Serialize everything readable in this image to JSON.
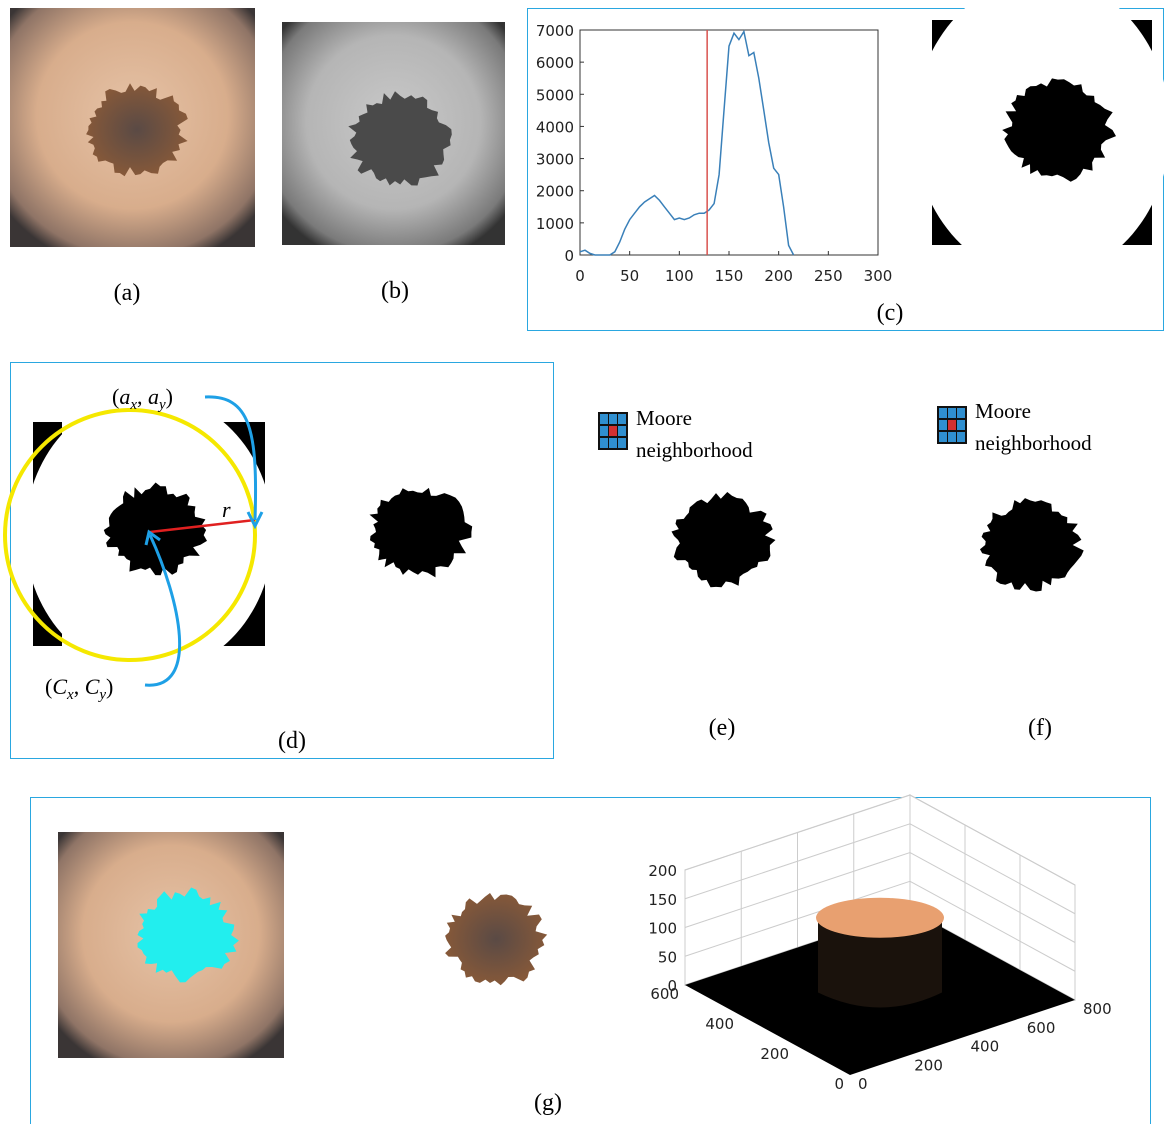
{
  "chart_data": [
    {
      "type": "line",
      "x": [
        0,
        5,
        10,
        15,
        20,
        25,
        30,
        35,
        40,
        45,
        50,
        55,
        60,
        65,
        70,
        75,
        80,
        85,
        90,
        95,
        100,
        105,
        110,
        115,
        120,
        125,
        130,
        135,
        140,
        145,
        150,
        155,
        160,
        165,
        170,
        175,
        180,
        185,
        190,
        195,
        200,
        205,
        210,
        215
      ],
      "values": [
        100,
        150,
        50,
        0,
        0,
        0,
        0,
        100,
        400,
        800,
        1100,
        1300,
        1500,
        1650,
        1750,
        1850,
        1700,
        1500,
        1300,
        1100,
        1150,
        1100,
        1150,
        1250,
        1300,
        1300,
        1400,
        1600,
        2500,
        4500,
        6500,
        6900,
        6700,
        6950,
        6200,
        6300,
        5500,
        4500,
        3500,
        2700,
        2500,
        1500,
        300,
        0
      ],
      "color": "#3a80b9",
      "vline": 128,
      "vline_color": "#d9534f",
      "xlim": [
        0,
        300
      ],
      "ylim": [
        0,
        7000
      ],
      "xticks": [
        0,
        50,
        100,
        150,
        200,
        250,
        300
      ],
      "yticks": [
        0,
        1000,
        2000,
        3000,
        4000,
        5000,
        6000,
        7000
      ]
    },
    {
      "type": "surface3d",
      "xlim": [
        0,
        800
      ],
      "ylim": [
        0,
        600
      ],
      "zlim": [
        0,
        200
      ],
      "xticks": [
        0,
        200,
        400,
        600,
        800
      ],
      "yticks": [
        0,
        200,
        400,
        600
      ],
      "zticks": [
        0,
        50,
        100,
        150,
        200
      ],
      "color": "#e8a070"
    }
  ],
  "panels": {
    "a": "(a)",
    "b": "(b)",
    "c": "(c)",
    "d": "(d)",
    "e": "(e)",
    "f": "(f)",
    "g": "(g)"
  },
  "annotations": {
    "a_point": [
      "(",
      "a",
      "x",
      ", ",
      "a",
      "y",
      ")"
    ],
    "radius": "r",
    "c_point": [
      "(",
      "C",
      "x",
      ", ",
      "C",
      "y",
      ")"
    ]
  },
  "moore": {
    "e": [
      "Moore",
      "neighborhood"
    ],
    "f": [
      "Moore",
      "neighborhood"
    ]
  }
}
